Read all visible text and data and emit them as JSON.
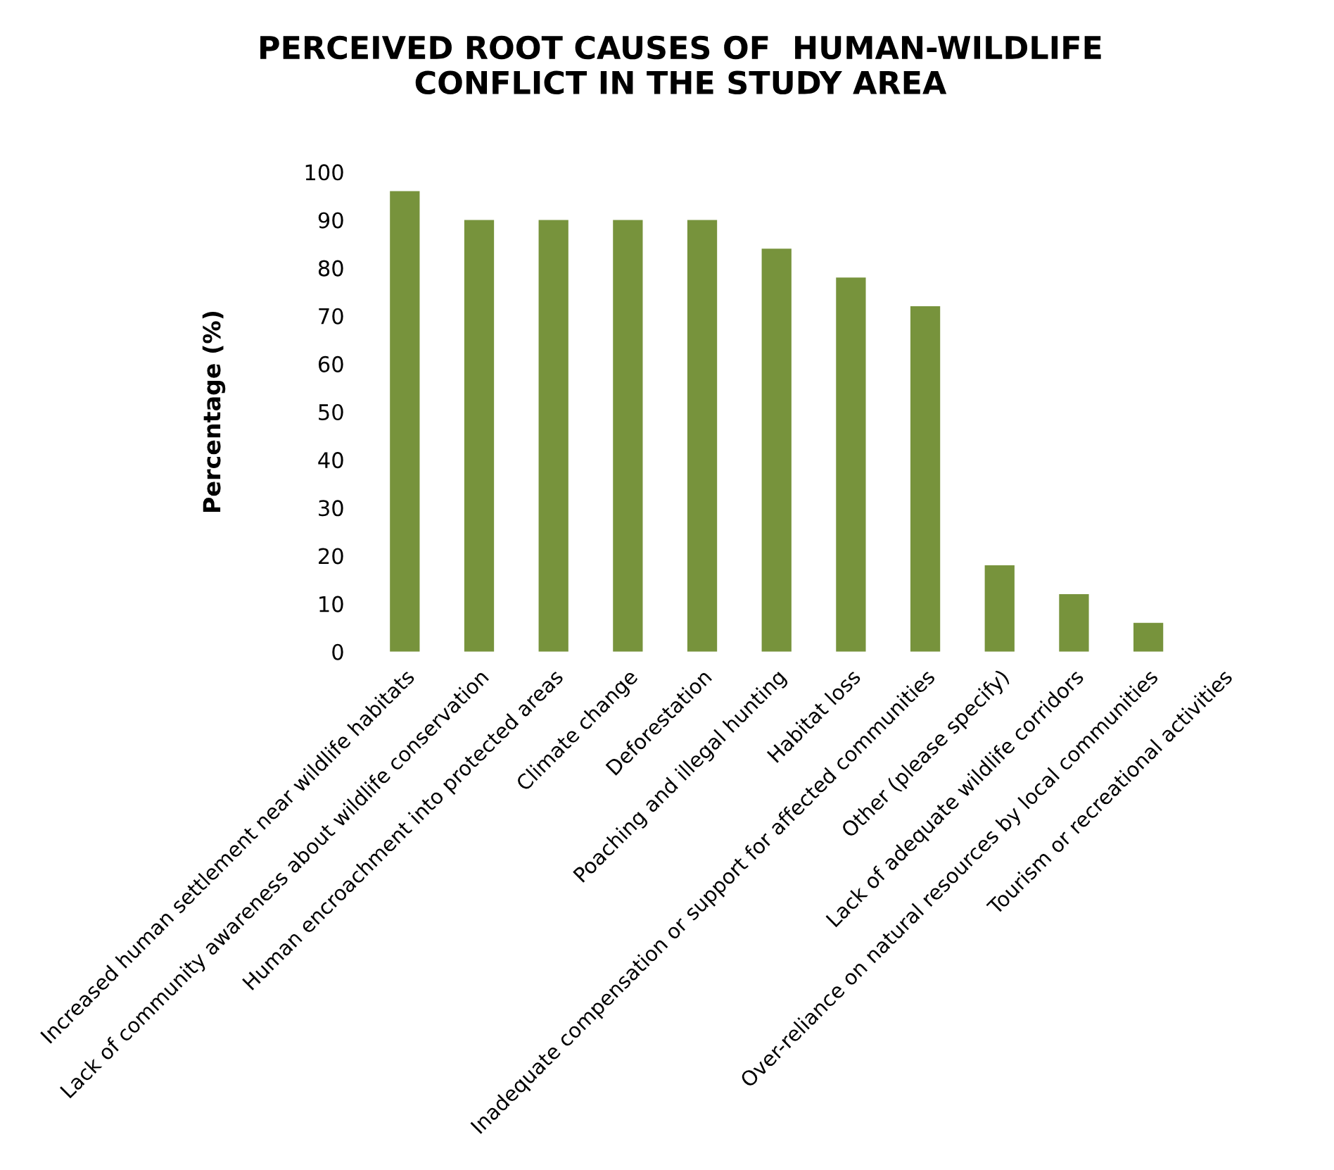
{
  "chart_data": {
    "type": "bar",
    "title": "PERCEIVED ROOT CAUSES OF  HUMAN-WILDLIFE\nCONFLICT IN THE STUDY AREA",
    "ylabel": "Percentage (%)",
    "categories": [
      "Increased human settlement near wildlife habitats",
      "Lack of community awareness about wildlife conservation",
      "Human encroachment into protected areas",
      "Climate change",
      "Deforestation",
      "Poaching and illegal hunting",
      "Habitat loss",
      "Inadequate compensation or support for affected communities",
      "Other (please specify)",
      "Lack of adequate wildlife corridors",
      "Over-reliance on natural resources by local communities",
      "Tourism or recreational activities"
    ],
    "values": [
      96,
      90,
      90,
      90,
      90,
      84,
      78,
      72,
      18,
      12,
      6,
      0
    ],
    "color": "#77933c",
    "ylim": [
      0,
      100
    ],
    "yticks": [
      0,
      10,
      20,
      30,
      40,
      50,
      60,
      70,
      80,
      90,
      100
    ],
    "grid": false,
    "legend": false
  }
}
